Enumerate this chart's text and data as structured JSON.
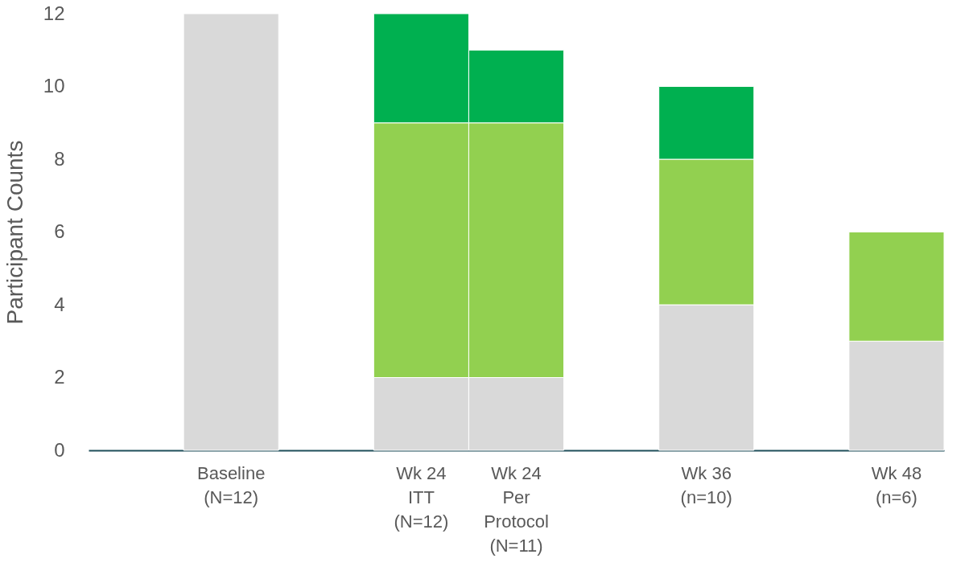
{
  "chart_data": {
    "type": "bar",
    "stacked": true,
    "ylabel": "Participant Counts",
    "categories": [
      null,
      "Baseline\n(N=12)",
      null,
      "Wk 24\nITT\n(N=12)",
      "Wk 24\nPer\nProtocol\n(N=11)",
      null,
      "Wk 36\n(n=10)",
      null,
      "Wk 48\n(n=6)"
    ],
    "series": [
      {
        "color": "#d9d9d9",
        "values": [
          null,
          12,
          null,
          2,
          2,
          null,
          4,
          null,
          3
        ]
      },
      {
        "color": "#92d050",
        "values": [
          null,
          null,
          null,
          7,
          7,
          null,
          4,
          null,
          3
        ]
      },
      {
        "color": "#00b050",
        "values": [
          null,
          null,
          null,
          3,
          2,
          null,
          2,
          null,
          null
        ]
      }
    ],
    "ylim": [
      0,
      12
    ],
    "yticks": [
      0,
      2,
      4,
      6,
      8,
      10,
      12
    ],
    "grid": false,
    "legend": false
  }
}
